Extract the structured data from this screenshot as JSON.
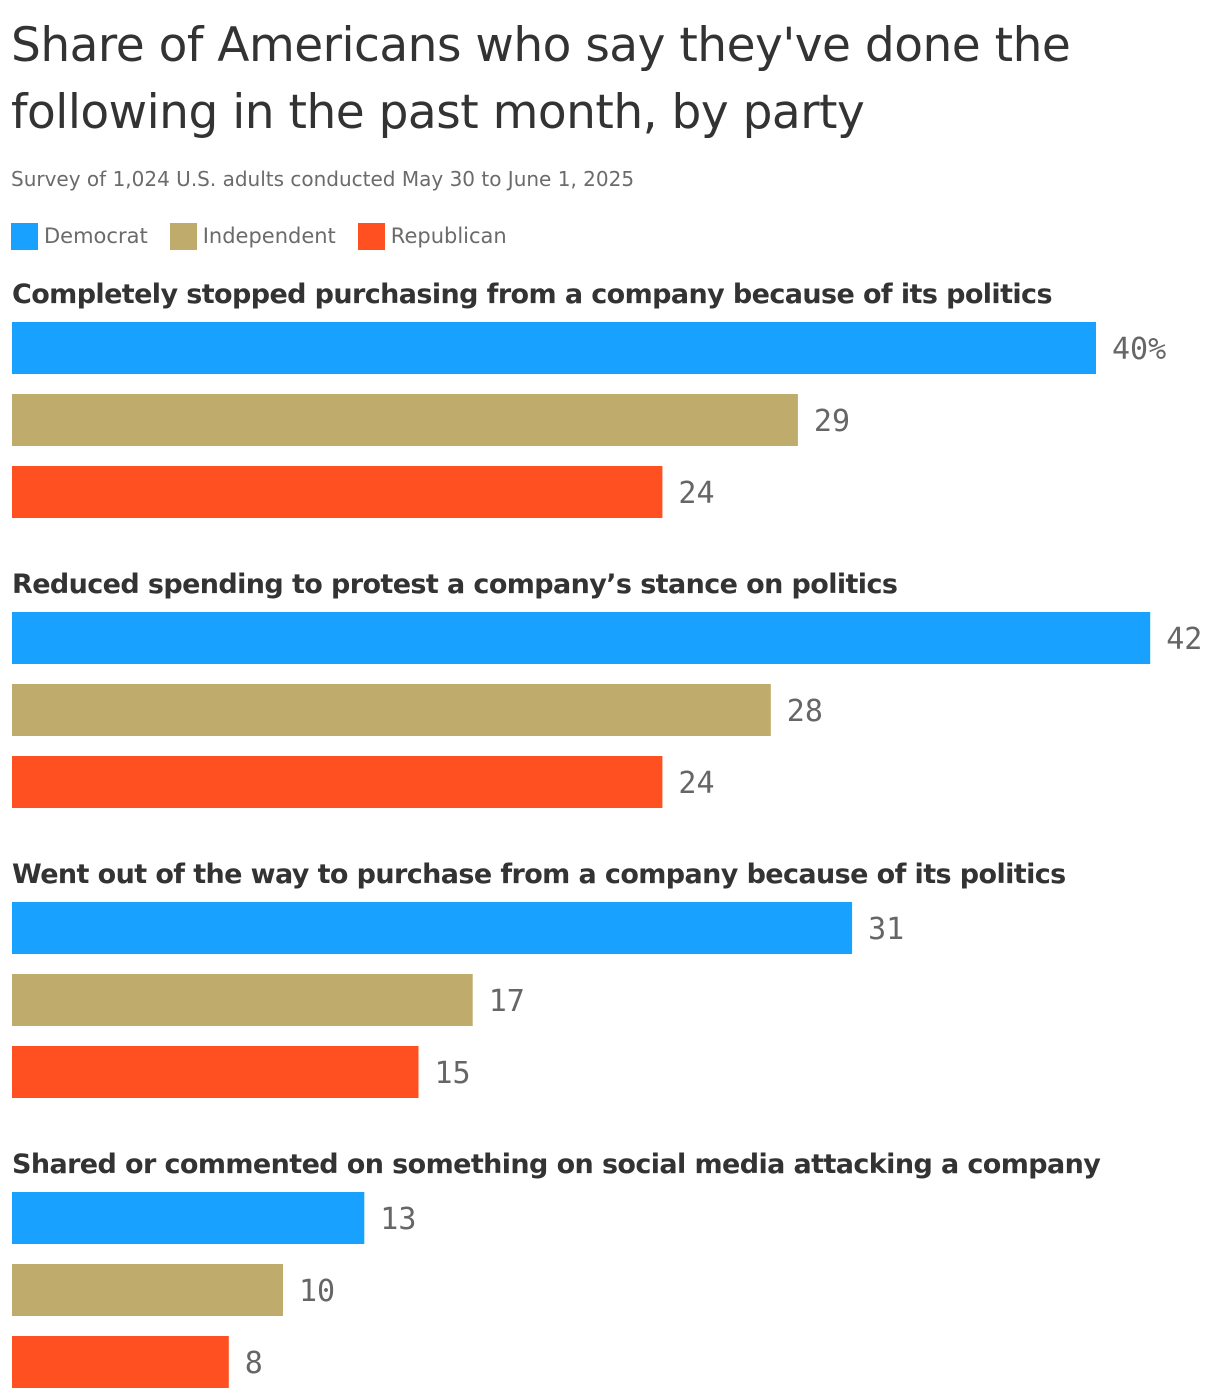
{
  "title": "Share of Americans who say they've done the following in the past month, by party",
  "subtitle": "Survey of 1,024 U.S. adults conducted May 30 to June 1, 2025",
  "legend": [
    {
      "label": "Democrat",
      "color": "#18a1ff"
    },
    {
      "label": "Independent",
      "color": "#bfac6c"
    },
    {
      "label": "Republican",
      "color": "#ff5021"
    }
  ],
  "chart_data": {
    "type": "bar",
    "orientation": "horizontal",
    "value_suffix_first_label": "%",
    "xlim": [
      0,
      42
    ],
    "series": [
      {
        "name": "Democrat",
        "color": "#18a1ff",
        "values": [
          40,
          42,
          31,
          13
        ]
      },
      {
        "name": "Independent",
        "color": "#bfac6c",
        "values": [
          29,
          28,
          17,
          10
        ]
      },
      {
        "name": "Republican",
        "color": "#ff5021",
        "values": [
          24,
          24,
          15,
          8
        ]
      }
    ],
    "categories": [
      "Completely stopped purchasing from a company because of its politics",
      "Reduced spending to protest a company’s stance on politics",
      "Went out of the way to purchase from a company because of its politics",
      "Shared or commented on something on social media attacking a company"
    ],
    "legend_position": "top-left",
    "grid": false
  }
}
